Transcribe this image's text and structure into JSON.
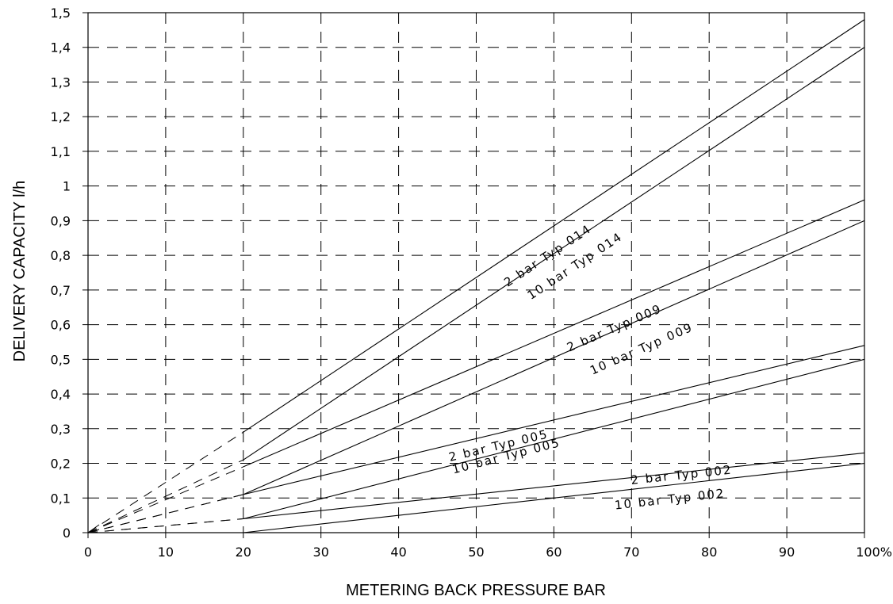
{
  "chart_data": {
    "type": "line",
    "xlabel": "METERING BACK PRESSURE BAR",
    "ylabel": "DELIVERY CAPACITY l/h",
    "xlim": [
      0,
      100
    ],
    "ylim": [
      0,
      1.5
    ],
    "x_ticks": [
      "0",
      "10",
      "20",
      "30",
      "40",
      "50",
      "60",
      "70",
      "80",
      "90",
      "100%"
    ],
    "y_ticks": [
      "0",
      "0,1",
      "0,2",
      "0,3",
      "0,4",
      "0,5",
      "0,6",
      "0,7",
      "0,8",
      "0,9",
      "1",
      "1,1",
      "1,2",
      "1,3",
      "1,4",
      "1,5"
    ],
    "grid": true,
    "series": [
      {
        "name": "2 bar Typ 014",
        "x": [
          20,
          100
        ],
        "y": [
          0.29,
          1.48
        ],
        "extrapolated_x": [
          0,
          20
        ],
        "extrapolated_y": [
          0,
          0.29
        ]
      },
      {
        "name": "10 bar Typ 014",
        "x": [
          20,
          100
        ],
        "y": [
          0.21,
          1.4
        ],
        "extrapolated_x": [
          0,
          20
        ],
        "extrapolated_y": [
          0,
          0.21
        ]
      },
      {
        "name": "2 bar Typ 009",
        "x": [
          20,
          100
        ],
        "y": [
          0.19,
          0.96
        ],
        "extrapolated_x": [
          0,
          20
        ],
        "extrapolated_y": [
          0,
          0.19
        ]
      },
      {
        "name": "10 bar Typ 009",
        "x": [
          20,
          100
        ],
        "y": [
          0.11,
          0.9
        ],
        "extrapolated_x": [
          0,
          20
        ],
        "extrapolated_y": [
          0,
          0.11
        ]
      },
      {
        "name": "2 bar Typ 005",
        "x": [
          20,
          100
        ],
        "y": [
          0.11,
          0.54
        ],
        "extrapolated_x": [
          0,
          20
        ],
        "extrapolated_y": [
          0,
          0.11
        ]
      },
      {
        "name": "10 bar Typ 005",
        "x": [
          20,
          100
        ],
        "y": [
          0.04,
          0.5
        ],
        "extrapolated_x": [
          0,
          20
        ],
        "extrapolated_y": [
          0,
          0.04
        ]
      },
      {
        "name": "2 bar Typ 002",
        "x": [
          20,
          100
        ],
        "y": [
          0.04,
          0.23
        ],
        "extrapolated_x": [
          0,
          20
        ],
        "extrapolated_y": [
          0,
          0.04
        ]
      },
      {
        "name": "10 bar Typ 002",
        "x": [
          20,
          100
        ],
        "y": [
          0.0,
          0.2
        ],
        "extrapolated_x": [
          0,
          20
        ],
        "extrapolated_y": [
          0,
          0.0
        ]
      }
    ],
    "annotations": [
      {
        "text": "2 bar Typ 014",
        "x": 59.5,
        "y": 0.79
      },
      {
        "text": "10 bar Typ 014",
        "x": 63,
        "y": 0.76
      },
      {
        "text": "2 bar Typ 009",
        "x": 68,
        "y": 0.58
      },
      {
        "text": "10 bar Typ 009",
        "x": 71.5,
        "y": 0.52
      },
      {
        "text": "2 bar Typ 005",
        "x": 53,
        "y": 0.24
      },
      {
        "text": "10 bar Typ 005",
        "x": 54,
        "y": 0.21
      },
      {
        "text": "2 bar Typ 002",
        "x": 76.5,
        "y": 0.155
      },
      {
        "text": "10 bar Typ 002",
        "x": 75,
        "y": 0.085
      }
    ]
  }
}
